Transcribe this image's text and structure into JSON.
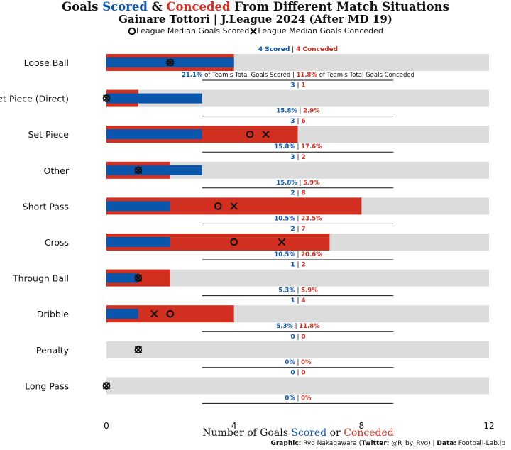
{
  "title": {
    "part1": "Goals ",
    "scored_word": "Scored",
    "part2": " & ",
    "conceded_word": "Conceded",
    "part3": " From Different Match Situations"
  },
  "subtitle": "Gainare Tottori | J.League 2024 (After MD 19)",
  "legend": {
    "scored_label": "League Median Goals Scored",
    "conceded_label": "League Median Goals Conceded"
  },
  "xlabel": {
    "part1": "Number of Goals ",
    "scored_word": "Scored",
    "part2": " or ",
    "conceded_word": "Conceded"
  },
  "credit": {
    "graphic_label": "Graphic:",
    "graphic_value": " Ryo Nakagawara (",
    "twitter_label": "Twitter:",
    "twitter_value": " @R_by_Ryo) | ",
    "data_label": "Data:",
    "data_value": " Football-Lab.jp"
  },
  "colors": {
    "scored": "#0a56ad",
    "conceded": "#d12f20",
    "background_bar": "#dcdcdc",
    "text": "#111111"
  },
  "chart_data": {
    "type": "bar",
    "orientation": "horizontal",
    "xlim": [
      0,
      12
    ],
    "xticks": [
      0,
      4,
      8,
      12
    ],
    "grid": false,
    "legend_position": "top",
    "categories": [
      "Loose Ball",
      "Set Piece (Direct)",
      "Set Piece",
      "Other",
      "Short Pass",
      "Cross",
      "Through Ball",
      "Dribble",
      "Penalty",
      "Long Pass"
    ],
    "series": [
      {
        "name": "Scored",
        "color": "#0a56ad",
        "values": [
          4,
          3,
          3,
          3,
          2,
          2,
          1,
          1,
          0,
          0
        ]
      },
      {
        "name": "Conceded",
        "color": "#d12f20",
        "values": [
          4,
          1,
          6,
          2,
          8,
          7,
          2,
          4,
          0,
          0
        ]
      }
    ],
    "league_median_scored": [
      2,
      0,
      4.5,
      1,
      3.5,
      4,
      1,
      2,
      1,
      0
    ],
    "league_median_conceded": [
      2,
      0,
      5,
      1,
      4,
      5.5,
      1,
      1.5,
      1,
      0
    ],
    "pct_scored": [
      "21.1%",
      "15.8%",
      "15.8%",
      "15.8%",
      "10.5%",
      "10.5%",
      "5.3%",
      "5.3%",
      "0%",
      "0%"
    ],
    "pct_conceded": [
      "11.8%",
      "2.9%",
      "17.6%",
      "5.9%",
      "23.5%",
      "20.6%",
      "5.9%",
      "11.8%",
      "0%",
      "0%"
    ],
    "first_row_count_suffix": {
      "scored": "Scored",
      "conceded": "Conceded"
    },
    "first_row_pct_suffix": {
      "scored": "of Team's Total Goals Scored",
      "conceded": "of Team's Total Goals Conceded"
    }
  }
}
